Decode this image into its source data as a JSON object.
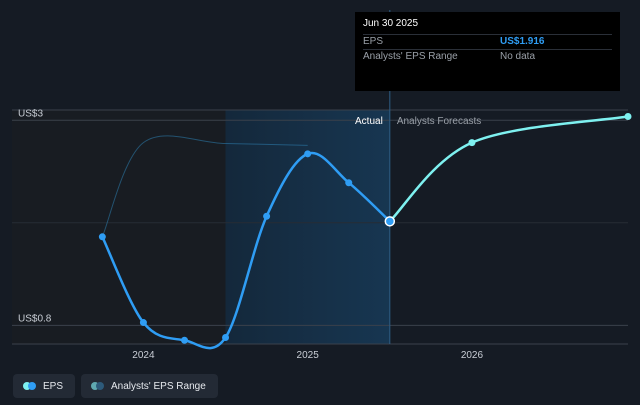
{
  "colors": {
    "background": "#151b24",
    "eps_actual": "#2f9df4",
    "eps_forecast": "#7ef1f0",
    "range": "#2d7fb0",
    "grid": "#3a414b",
    "highlight": "#173651"
  },
  "chart_data": {
    "type": "line",
    "title": "",
    "xlabel": "",
    "ylabel": "",
    "x_ticks": [
      {
        "label": "2024",
        "date": 2024.0
      },
      {
        "label": "2025",
        "date": 2025.0
      },
      {
        "label": "2026",
        "date": 2026.0
      }
    ],
    "y_labels": [
      {
        "label": "US$3",
        "value": 3.0
      },
      {
        "label": "US$0.8",
        "value": 0.8
      }
    ],
    "x_range": [
      2023.2,
      2026.95
    ],
    "y_range": [
      0.6,
      3.11
    ],
    "actual_label": "Actual",
    "forecast_label": "Analysts Forecasts",
    "series": [
      {
        "name": "EPS",
        "kind": "actual",
        "points": [
          {
            "x": 2023.75,
            "y": 1.75
          },
          {
            "x": 2024.0,
            "y": 0.83
          },
          {
            "x": 2024.25,
            "y": 0.64
          },
          {
            "x": 2024.5,
            "y": 0.67
          },
          {
            "x": 2024.75,
            "y": 1.97
          },
          {
            "x": 2025.0,
            "y": 2.64
          },
          {
            "x": 2025.25,
            "y": 2.33
          },
          {
            "x": 2025.5,
            "y": 1.916
          }
        ]
      },
      {
        "name": "EPS forecast",
        "kind": "forecast",
        "points": [
          {
            "x": 2025.5,
            "y": 1.916
          },
          {
            "x": 2026.0,
            "y": 2.76
          },
          {
            "x": 2026.95,
            "y": 3.04
          }
        ]
      },
      {
        "name": "Analysts' EPS Range",
        "kind": "range",
        "points": [
          {
            "x": 2023.75,
            "y": 1.75
          },
          {
            "x": 2024.0,
            "y": 2.76
          },
          {
            "x": 2024.5,
            "y": 2.75
          },
          {
            "x": 2025.0,
            "y": 2.73
          }
        ]
      }
    ]
  },
  "tooltip": {
    "date": "Jun 30 2025",
    "rows": [
      {
        "label": "EPS",
        "value": "US$1.916"
      },
      {
        "label": "Analysts' EPS Range",
        "value": "No data"
      }
    ]
  },
  "legend": [
    {
      "label": "EPS",
      "icon": "eps-legend-icon"
    },
    {
      "label": "Analysts' EPS Range",
      "icon": "range-legend-icon"
    }
  ]
}
